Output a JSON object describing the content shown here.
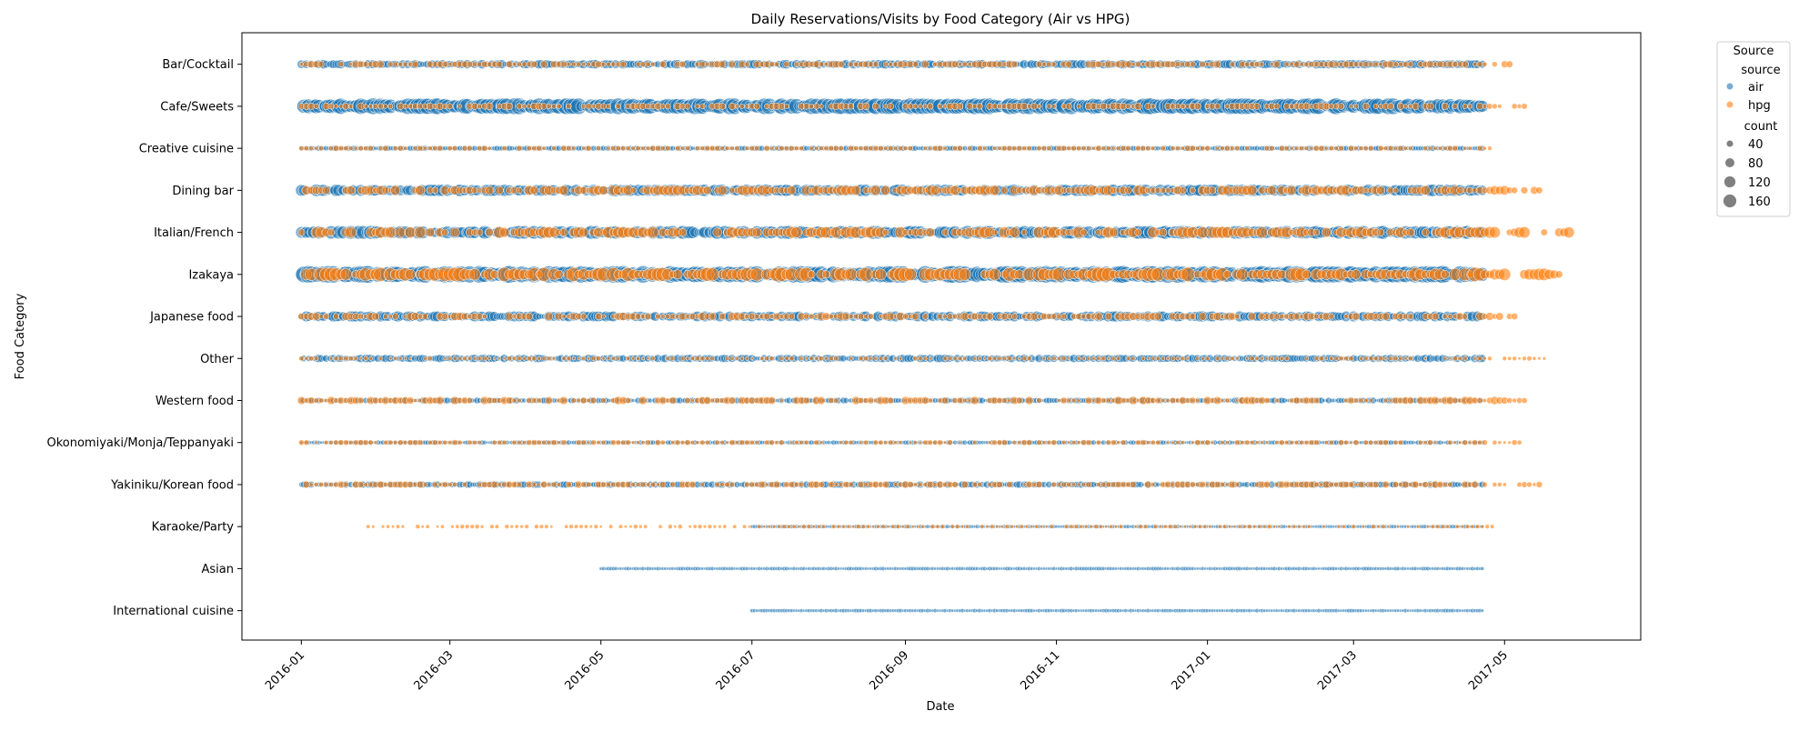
{
  "chart_data": {
    "type": "scatter",
    "title": "Daily Reservations/Visits by Food Category (Air vs HPG)",
    "xlabel": "Date",
    "ylabel": "Food Category",
    "xlim": [
      "2015-12-08",
      "2017-06-25"
    ],
    "x_ticks": [
      "2016-01",
      "2016-03",
      "2016-05",
      "2016-07",
      "2016-09",
      "2016-11",
      "2017-01",
      "2017-03",
      "2017-05"
    ],
    "categories": [
      "Bar/Cocktail",
      "Cafe/Sweets",
      "Creative cuisine",
      "Dining bar",
      "Italian/French",
      "Izakaya",
      "Japanese food",
      "Other",
      "Western food",
      "Okonomiyaki/Monja/Teppanyaki",
      "Yakiniku/Korean food",
      "Karaoke/Party",
      "Asian",
      "International cuisine"
    ],
    "grid": false,
    "legend": {
      "title": "Source",
      "position": "outside-top-right",
      "hue_title": "source",
      "hue_entries": [
        {
          "label": "air",
          "color": "#1f77b4"
        },
        {
          "label": "hpg",
          "color": "#ff7f0e"
        }
      ],
      "size_title": "count",
      "size_entries": [
        {
          "label": "40",
          "value": 40
        },
        {
          "label": "80",
          "value": 80
        },
        {
          "label": "120",
          "value": 120
        },
        {
          "label": "160",
          "value": 160
        }
      ]
    },
    "colors": {
      "air": "#1f77b4",
      "hpg": "#ff7f0e",
      "size_legend": "#808080"
    },
    "series": [
      {
        "name": "air",
        "segments": [
          {
            "category": "Bar/Cocktail",
            "start": "2016-01-01",
            "end": "2017-04-22",
            "counts": [
              15,
              50
            ]
          },
          {
            "category": "Cafe/Sweets",
            "start": "2016-01-01",
            "end": "2017-04-22",
            "counts": [
              40,
              160
            ]
          },
          {
            "category": "Creative cuisine",
            "start": "2016-01-01",
            "end": "2017-04-22",
            "counts": [
              8,
              20
            ]
          },
          {
            "category": "Dining bar",
            "start": "2016-01-01",
            "end": "2017-04-22",
            "counts": [
              20,
              90
            ]
          },
          {
            "category": "Italian/French",
            "start": "2016-01-01",
            "end": "2017-04-22",
            "counts": [
              25,
              110
            ]
          },
          {
            "category": "Izakaya",
            "start": "2016-01-01",
            "end": "2017-04-22",
            "counts": [
              60,
              180
            ]
          },
          {
            "category": "Japanese food",
            "start": "2016-01-01",
            "end": "2017-04-22",
            "counts": [
              12,
              70
            ]
          },
          {
            "category": "Other",
            "start": "2016-01-01",
            "end": "2017-04-22",
            "counts": [
              10,
              40
            ]
          },
          {
            "category": "Western food",
            "start": "2016-01-01",
            "end": "2017-04-22",
            "counts": [
              6,
              25
            ]
          },
          {
            "category": "Okonomiyaki/Monja/Teppanyaki",
            "start": "2016-01-01",
            "end": "2017-04-22",
            "counts": [
              5,
              15
            ]
          },
          {
            "category": "Yakiniku/Korean food",
            "start": "2016-01-01",
            "end": "2017-04-22",
            "counts": [
              6,
              30
            ]
          },
          {
            "category": "Karaoke/Party",
            "start": "2016-07-01",
            "end": "2017-04-22",
            "counts": [
              5,
              10
            ]
          },
          {
            "category": "Asian",
            "start": "2016-05-01",
            "end": "2017-04-22",
            "counts": [
              5,
              10
            ]
          },
          {
            "category": "International cuisine",
            "start": "2016-07-01",
            "end": "2017-04-22",
            "counts": [
              5,
              10
            ]
          }
        ]
      },
      {
        "name": "hpg",
        "segments": [
          {
            "category": "Bar/Cocktail",
            "start": "2016-01-01",
            "end": "2017-05-04",
            "counts": [
              10,
              30
            ]
          },
          {
            "category": "Cafe/Sweets",
            "start": "2016-01-01",
            "end": "2017-05-09",
            "counts": [
              10,
              30
            ]
          },
          {
            "category": "Creative cuisine",
            "start": "2016-01-01",
            "end": "2017-04-26",
            "counts": [
              8,
              20
            ]
          },
          {
            "category": "Dining bar",
            "start": "2016-01-01",
            "end": "2017-05-15",
            "counts": [
              15,
              60
            ]
          },
          {
            "category": "Italian/French",
            "start": "2016-01-01",
            "end": "2017-05-28",
            "counts": [
              20,
              80
            ]
          },
          {
            "category": "Izakaya",
            "start": "2016-01-01",
            "end": "2017-05-24",
            "counts": [
              30,
              120
            ]
          },
          {
            "category": "Japanese food",
            "start": "2016-01-01",
            "end": "2017-05-07",
            "counts": [
              10,
              40
            ]
          },
          {
            "category": "Other",
            "start": "2016-01-01",
            "end": "2017-05-17",
            "counts": [
              5,
              15
            ]
          },
          {
            "category": "Western food",
            "start": "2016-01-01",
            "end": "2017-05-09",
            "counts": [
              8,
              40
            ]
          },
          {
            "category": "Okonomiyaki/Monja/Teppanyaki",
            "start": "2016-01-01",
            "end": "2017-05-08",
            "counts": [
              6,
              20
            ]
          },
          {
            "category": "Yakiniku/Korean food",
            "start": "2016-01-01",
            "end": "2017-05-15",
            "counts": [
              8,
              30
            ]
          },
          {
            "category": "Karaoke/Party",
            "start": "2016-01-28",
            "end": "2017-04-26",
            "counts": [
              5,
              12
            ]
          },
          {
            "category": "Asian",
            "start": "2016-01-01",
            "end": "2016-01-01",
            "counts": []
          },
          {
            "category": "International cuisine",
            "start": "2016-01-01",
            "end": "2016-01-01",
            "counts": []
          }
        ]
      }
    ]
  }
}
